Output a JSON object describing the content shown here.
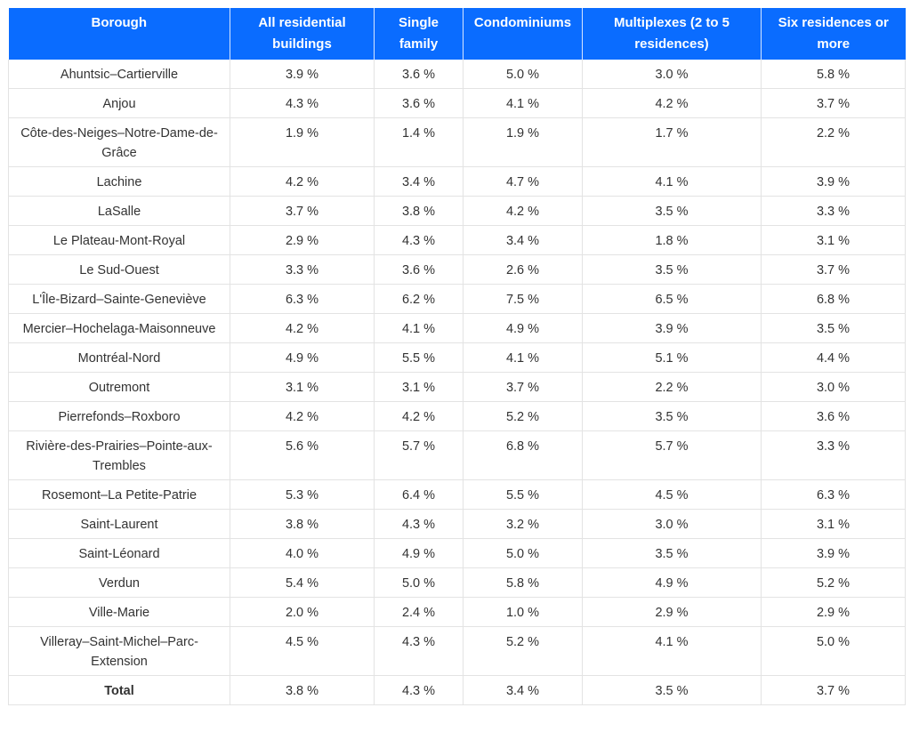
{
  "table": {
    "headers": [
      "Borough",
      "All residential buildings",
      "Single family",
      "Condominiums",
      "Multiplexes (2 to 5 residences)",
      "Six residences or more"
    ],
    "rows": [
      [
        "Ahuntsic–Cartierville",
        "3.9 %",
        "3.6 %",
        "5.0 %",
        "3.0 %",
        "5.8 %"
      ],
      [
        "Anjou",
        "4.3 %",
        "3.6 %",
        "4.1 %",
        "4.2 %",
        "3.7 %"
      ],
      [
        "Côte-des-Neiges–Notre-Dame-de-Grâce",
        "1.9 %",
        "1.4 %",
        "1.9 %",
        "1.7 %",
        "2.2 %"
      ],
      [
        "Lachine",
        "4.2 %",
        "3.4 %",
        "4.7 %",
        "4.1 %",
        "3.9 %"
      ],
      [
        "LaSalle",
        "3.7 %",
        "3.8 %",
        "4.2 %",
        "3.5 %",
        "3.3 %"
      ],
      [
        "Le Plateau-Mont-Royal",
        "2.9 %",
        "4.3 %",
        "3.4 %",
        "1.8 %",
        "3.1 %"
      ],
      [
        "Le Sud-Ouest",
        "3.3 %",
        "3.6 %",
        "2.6 %",
        "3.5 %",
        "3.7 %"
      ],
      [
        "L'Île-Bizard–Sainte-Geneviève",
        "6.3 %",
        "6.2 %",
        "7.5 %",
        "6.5 %",
        "6.8 %"
      ],
      [
        "Mercier–Hochelaga-Maisonneuve",
        "4.2 %",
        "4.1 %",
        "4.9 %",
        "3.9 %",
        "3.5 %"
      ],
      [
        "Montréal-Nord",
        "4.9 %",
        "5.5 %",
        "4.1 %",
        "5.1 %",
        "4.4 %"
      ],
      [
        "Outremont",
        "3.1 %",
        "3.1 %",
        "3.7 %",
        "2.2 %",
        "3.0 %"
      ],
      [
        "Pierrefonds–Roxboro",
        "4.2 %",
        "4.2 %",
        "5.2 %",
        "3.5 %",
        "3.6 %"
      ],
      [
        "Rivière-des-Prairies–Pointe-aux-Trembles",
        "5.6 %",
        "5.7 %",
        "6.8 %",
        "5.7 %",
        "3.3 %"
      ],
      [
        "Rosemont–La Petite-Patrie",
        "5.3 %",
        "6.4 %",
        "5.5 %",
        "4.5 %",
        "6.3 %"
      ],
      [
        "Saint-Laurent",
        "3.8 %",
        "4.3 %",
        "3.2 %",
        "3.0 %",
        "3.1 %"
      ],
      [
        "Saint-Léonard",
        "4.0 %",
        "4.9 %",
        "5.0 %",
        "3.5 %",
        "3.9 %"
      ],
      [
        "Verdun",
        "5.4 %",
        "5.0 %",
        "5.8 %",
        "4.9 %",
        "5.2 %"
      ],
      [
        "Ville-Marie",
        "2.0 %",
        "2.4 %",
        "1.0 %",
        "2.9 %",
        "2.9 %"
      ],
      [
        "Villeray–Saint-Michel–Parc-Extension",
        "4.5 %",
        "4.3 %",
        "5.2 %",
        "4.1 %",
        "5.0 %"
      ]
    ],
    "total": [
      "Total",
      "3.8 %",
      "4.3 %",
      "3.4 %",
      "3.5 %",
      "3.7 %"
    ]
  },
  "colors": {
    "header_background": "#0a6cff",
    "header_text": "#ffffff",
    "cell_text": "#333333",
    "border": "#e3e3e3"
  }
}
